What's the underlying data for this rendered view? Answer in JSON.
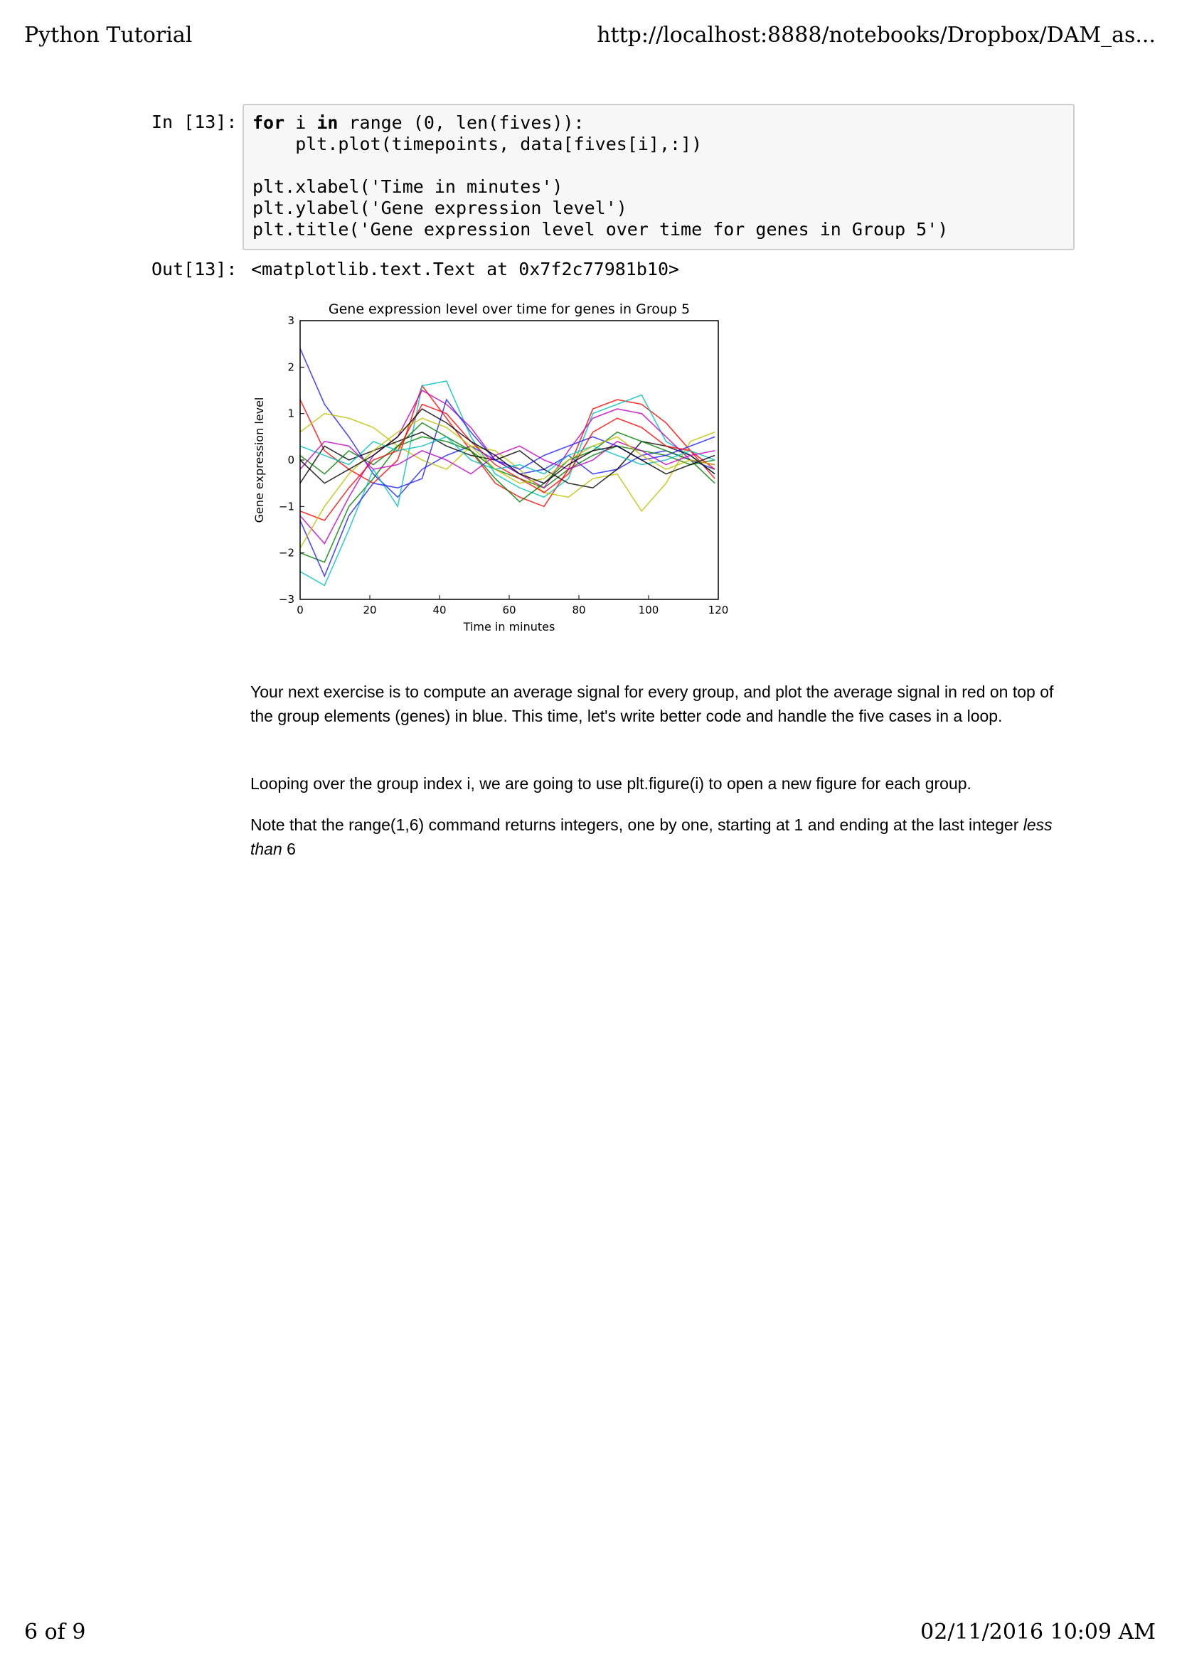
{
  "header": {
    "title": "Python Tutorial",
    "url": "http://localhost:8888/notebooks/Dropbox/DAM_as..."
  },
  "footer": {
    "page": "6 of 9",
    "datetime": "02/11/2016 10:09 AM"
  },
  "cell": {
    "in_prompt": "In [13]:",
    "out_prompt": "Out[13]:",
    "code": {
      "l1_kw1": "for",
      "l1_mid": " i ",
      "l1_kw2": "in",
      "l1_rest": " range (0, len(fives)):",
      "l2": "    plt.plot(timepoints, data[fives[i],:])",
      "l3": "",
      "l4": "plt.xlabel('Time in minutes')",
      "l5": "plt.ylabel('Gene expression level')",
      "l6": "plt.title('Gene expression level over time for genes in Group 5')"
    },
    "output_text": "<matplotlib.text.Text at 0x7f2c77981b10>"
  },
  "chart_data": {
    "type": "line",
    "title": "Gene expression level over time for genes in Group 5",
    "xlabel": "Time in minutes",
    "ylabel": "Gene expression level",
    "xlim": [
      0,
      120
    ],
    "ylim": [
      -3,
      3
    ],
    "xticks": [
      "0",
      "20",
      "40",
      "60",
      "80",
      "100",
      "120"
    ],
    "yticks": [
      "−3",
      "−2",
      "−1",
      "0",
      "1",
      "2",
      "3"
    ],
    "x": [
      0,
      7,
      14,
      21,
      28,
      35,
      42,
      49,
      56,
      63,
      70,
      77,
      84,
      91,
      98,
      105,
      112,
      119
    ],
    "colors": [
      "#1f1fff",
      "#008000",
      "#ff0000",
      "#00bfbf",
      "#bf00bf",
      "#bfbf00",
      "#000000"
    ],
    "series": [
      {
        "values": [
          2.4,
          1.2,
          0.5,
          -0.3,
          -0.8,
          -0.2,
          0.1,
          0.3,
          0.0,
          -0.3,
          -0.2,
          0.1,
          -0.3,
          -0.2,
          0.1,
          0.2,
          0.0,
          -0.2
        ]
      },
      {
        "values": [
          -2.0,
          -2.2,
          -1.0,
          -0.4,
          0.3,
          0.5,
          0.4,
          0.2,
          -0.2,
          -0.4,
          -0.6,
          -0.2,
          0.1,
          0.3,
          0.2,
          0.1,
          -0.1,
          0.0
        ]
      },
      {
        "values": [
          1.3,
          0.2,
          -0.2,
          -0.5,
          0.0,
          1.6,
          0.9,
          0.2,
          -0.5,
          -0.8,
          -1.0,
          -0.2,
          1.1,
          1.3,
          1.2,
          0.8,
          0.2,
          -0.4
        ]
      },
      {
        "values": [
          -2.4,
          -2.7,
          -1.5,
          -0.2,
          -1.0,
          1.6,
          1.7,
          0.5,
          -0.3,
          -0.6,
          -0.8,
          -0.4,
          1.0,
          1.2,
          1.4,
          0.4,
          0.1,
          -0.3
        ]
      },
      {
        "values": [
          -1.2,
          -1.8,
          -0.8,
          0.1,
          0.5,
          1.5,
          1.2,
          0.7,
          0.0,
          -0.3,
          -0.6,
          0.2,
          0.9,
          1.1,
          1.0,
          0.5,
          0.0,
          -0.1
        ]
      },
      {
        "values": [
          0.6,
          1.0,
          0.9,
          0.7,
          0.3,
          0.0,
          -0.2,
          0.3,
          0.2,
          -0.2,
          -0.7,
          -0.8,
          -0.4,
          -0.3,
          -1.1,
          -0.5,
          0.4,
          0.6
        ]
      },
      {
        "values": [
          -0.5,
          0.3,
          0.0,
          0.2,
          0.4,
          0.6,
          0.3,
          0.1,
          0.0,
          0.2,
          -0.2,
          -0.5,
          -0.6,
          -0.2,
          0.4,
          0.3,
          0.1,
          -0.3
        ]
      },
      {
        "values": [
          -1.3,
          -2.5,
          -1.2,
          -0.5,
          -0.6,
          -0.4,
          1.3,
          0.6,
          0.0,
          -0.2,
          0.1,
          0.3,
          0.5,
          0.3,
          0.0,
          0.1,
          0.3,
          0.5
        ]
      },
      {
        "values": [
          0.1,
          -0.3,
          0.2,
          -0.1,
          0.3,
          0.8,
          0.5,
          0.2,
          -0.4,
          -0.9,
          -0.5,
          0.0,
          0.2,
          0.6,
          0.4,
          0.2,
          0.0,
          -0.5
        ]
      },
      {
        "values": [
          -1.1,
          -1.3,
          -0.6,
          0.0,
          0.2,
          1.2,
          1.0,
          0.4,
          -0.1,
          -0.4,
          -0.7,
          -0.3,
          0.6,
          0.9,
          0.7,
          0.3,
          0.2,
          -0.2
        ]
      },
      {
        "values": [
          0.3,
          0.1,
          -0.1,
          0.4,
          0.2,
          0.3,
          0.5,
          0.0,
          -0.2,
          -0.1,
          -0.3,
          0.1,
          0.3,
          0.1,
          -0.1,
          0.0,
          0.2,
          0.0
        ]
      },
      {
        "values": [
          -0.2,
          0.4,
          0.3,
          -0.2,
          -0.1,
          0.2,
          0.0,
          -0.3,
          0.1,
          0.3,
          0.0,
          -0.2,
          0.0,
          0.4,
          0.2,
          -0.1,
          0.1,
          0.2
        ]
      },
      {
        "values": [
          -1.9,
          -1.0,
          -0.3,
          0.2,
          0.6,
          0.9,
          0.7,
          0.3,
          -0.2,
          -0.5,
          -0.4,
          0.0,
          0.3,
          0.5,
          0.1,
          -0.2,
          0.0,
          -0.1
        ]
      },
      {
        "values": [
          0.0,
          -0.5,
          -0.2,
          0.1,
          0.5,
          1.1,
          0.8,
          0.4,
          0.1,
          -0.3,
          -0.5,
          -0.1,
          0.2,
          0.3,
          0.0,
          -0.3,
          -0.1,
          0.1
        ]
      }
    ]
  },
  "text": {
    "p1": "Your next exercise is to compute an average signal for every group, and plot the average signal in red on top of the group elements (genes) in blue. This time, let's write better code and handle the five cases in a loop.",
    "p2": "Looping over the group index i, we are going to use plt.figure(i) to open a new figure for each group.",
    "p3_before": "Note that the range(1,6) command returns integers, one by one, starting at 1 and ending at the last integer ",
    "p3_em": "less than",
    "p3_after": " 6"
  }
}
